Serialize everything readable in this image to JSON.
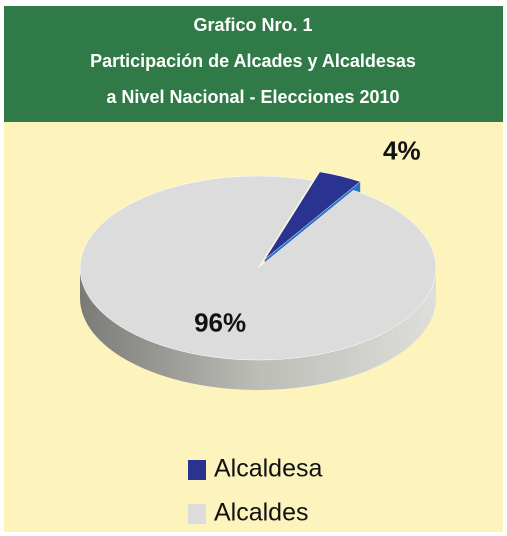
{
  "chart_data": {
    "type": "pie",
    "title": [
      "Grafico Nro. 1",
      "Participación de Alcades y Alcaldesas",
      "a Nivel Nacional - Elecciones 2010"
    ],
    "categories": [
      "Alcaldesa",
      "Alcaldes"
    ],
    "values": [
      4,
      96
    ],
    "value_labels": [
      "4%",
      "96%"
    ],
    "colors": [
      "#2b3391",
      "#dcdcdc"
    ],
    "legend": "bottom"
  }
}
